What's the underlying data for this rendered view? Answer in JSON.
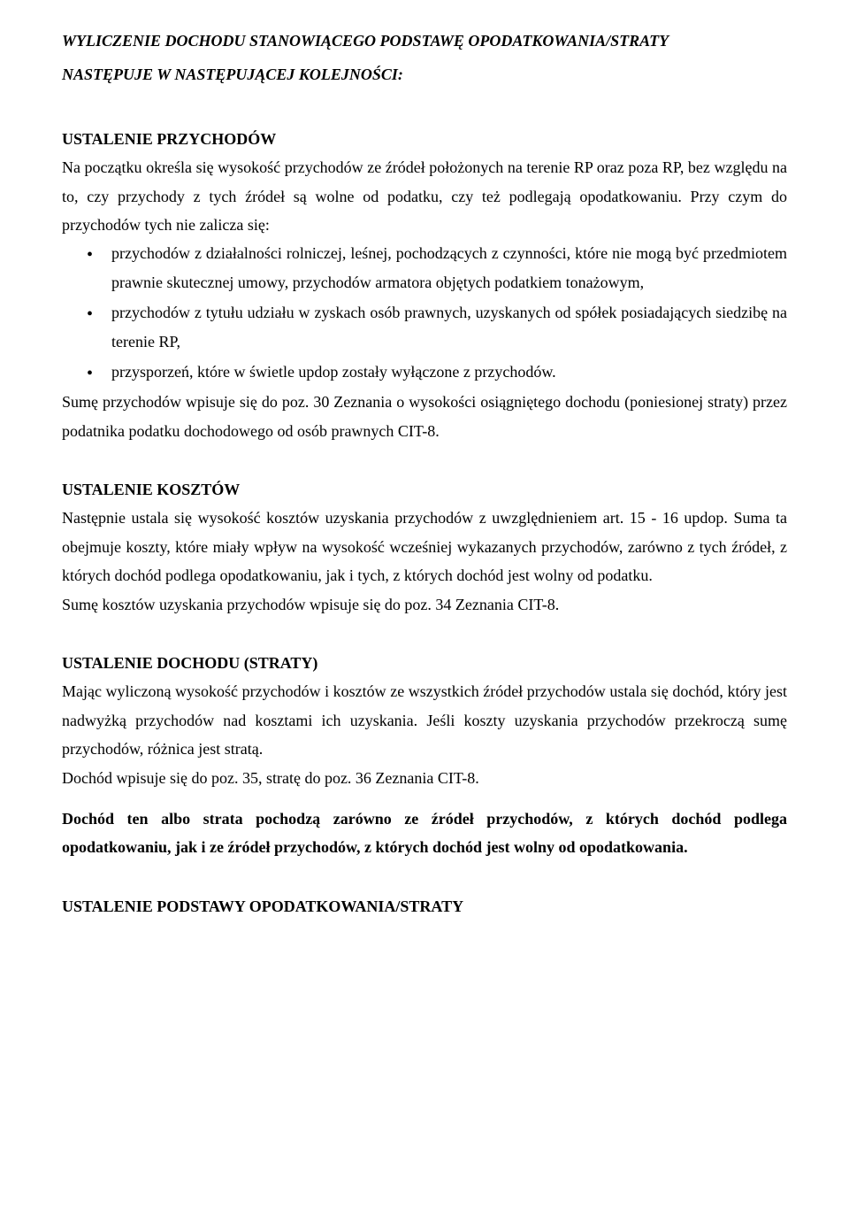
{
  "title_line1": "WYLICZENIE DOCHODU STANOWIĄCEGO PODSTAWĘ OPODATKOWANIA/STRATY",
  "title_line2": "NASTĘPUJE W NASTĘPUJĄCEJ KOLEJNOŚCI:",
  "section1_heading": "USTALENIE PRZYCHODÓW",
  "section1_p1": "Na początku określa się wysokość przychodów ze źródeł położonych na terenie RP oraz poza RP, bez względu na to, czy przychody z tych źródeł są wolne od podatku, czy też podlegają opodatkowaniu. Przy czym do przychodów tych nie zalicza się:",
  "section1_bullets": [
    "przychodów z działalności rolniczej, leśnej, pochodzących z czynności, które nie mogą być przedmiotem prawnie skutecznej umowy, przychodów armatora objętych podatkiem tonażowym,",
    "przychodów z tytułu udziału w zyskach osób prawnych, uzyskanych od spółek posiadających siedzibę na terenie RP,",
    "przysporzeń, które w świetle updop zostały wyłączone z przychodów."
  ],
  "section1_p2": "Sumę przychodów wpisuje się do poz. 30 Zeznania o wysokości osiągniętego dochodu (poniesionej straty) przez podatnika podatku dochodowego od osób prawnych CIT-8.",
  "section2_heading": "USTALENIE KOSZTÓW",
  "section2_p1": "Następnie ustala się wysokość kosztów uzyskania przychodów z uwzględnieniem art. 15 - 16 updop. Suma ta obejmuje koszty, które miały wpływ na wysokość wcześniej wykazanych przychodów, zarówno z tych źródeł, z których dochód podlega opodatkowaniu, jak i tych, z których dochód jest wolny od podatku.",
  "section2_p2": "Sumę kosztów uzyskania przychodów wpisuje się do poz. 34 Zeznania CIT-8.",
  "section3_heading": "USTALENIE DOCHODU (STRATY)",
  "section3_p1": "Mając wyliczoną wysokość przychodów i kosztów ze wszystkich źródeł przychodów ustala się dochód, który jest nadwyżką przychodów nad kosztami ich uzyskania. Jeśli koszty uzyskania przychodów przekroczą sumę przychodów, różnica jest stratą.",
  "section3_p2": "Dochód wpisuje się do poz. 35, stratę do poz. 36 Zeznania CIT-8.",
  "section3_bold": "Dochód ten albo strata pochodzą zarówno ze źródeł przychodów, z których dochód podlega opodatkowaniu, jak i ze źródeł przychodów, z których dochód jest wolny od opodatkowania.",
  "section4_heading": "USTALENIE PODSTAWY OPODATKOWANIA/STRATY"
}
